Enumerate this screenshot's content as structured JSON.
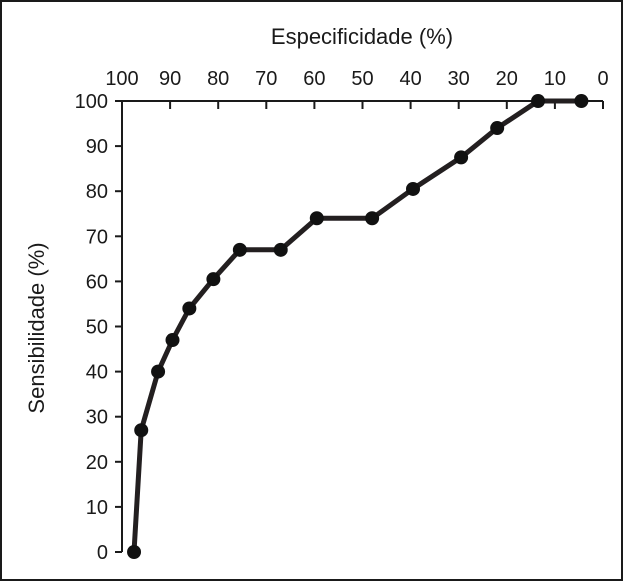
{
  "chart_data": {
    "type": "line",
    "xlabel": "Especificidade (%)",
    "ylabel": "Sensibilidade (%)",
    "xlim": [
      100,
      0
    ],
    "ylim": [
      0,
      100
    ],
    "x_axis_position": "top",
    "x_ticks": [
      100,
      90,
      80,
      70,
      60,
      50,
      40,
      30,
      20,
      10,
      0
    ],
    "y_ticks": [
      0,
      10,
      20,
      30,
      40,
      50,
      60,
      70,
      80,
      90,
      100
    ],
    "x_tick_labels": [
      "100",
      "90",
      "80",
      "70",
      "60",
      "50",
      "40",
      "30",
      "20",
      "10",
      "0"
    ],
    "y_tick_labels": [
      "0",
      "10",
      "20",
      "30",
      "40",
      "50",
      "60",
      "70",
      "80",
      "90",
      "100"
    ],
    "grid": false,
    "colors": {
      "line": "#231f20",
      "marker": "#111111",
      "axis": "#1a1a1a"
    },
    "series": [
      {
        "points": [
          {
            "x": 97.5,
            "y": 0
          },
          {
            "x": 96,
            "y": 27
          },
          {
            "x": 92.5,
            "y": 40
          },
          {
            "x": 89.5,
            "y": 47
          },
          {
            "x": 86,
            "y": 54
          },
          {
            "x": 81,
            "y": 60.5
          },
          {
            "x": 75.5,
            "y": 67
          },
          {
            "x": 67,
            "y": 67
          },
          {
            "x": 59.5,
            "y": 74
          },
          {
            "x": 48,
            "y": 74
          },
          {
            "x": 39.5,
            "y": 80.5
          },
          {
            "x": 29.5,
            "y": 87.5
          },
          {
            "x": 22,
            "y": 94
          },
          {
            "x": 13.5,
            "y": 100
          },
          {
            "x": 4.5,
            "y": 100
          }
        ]
      }
    ]
  }
}
